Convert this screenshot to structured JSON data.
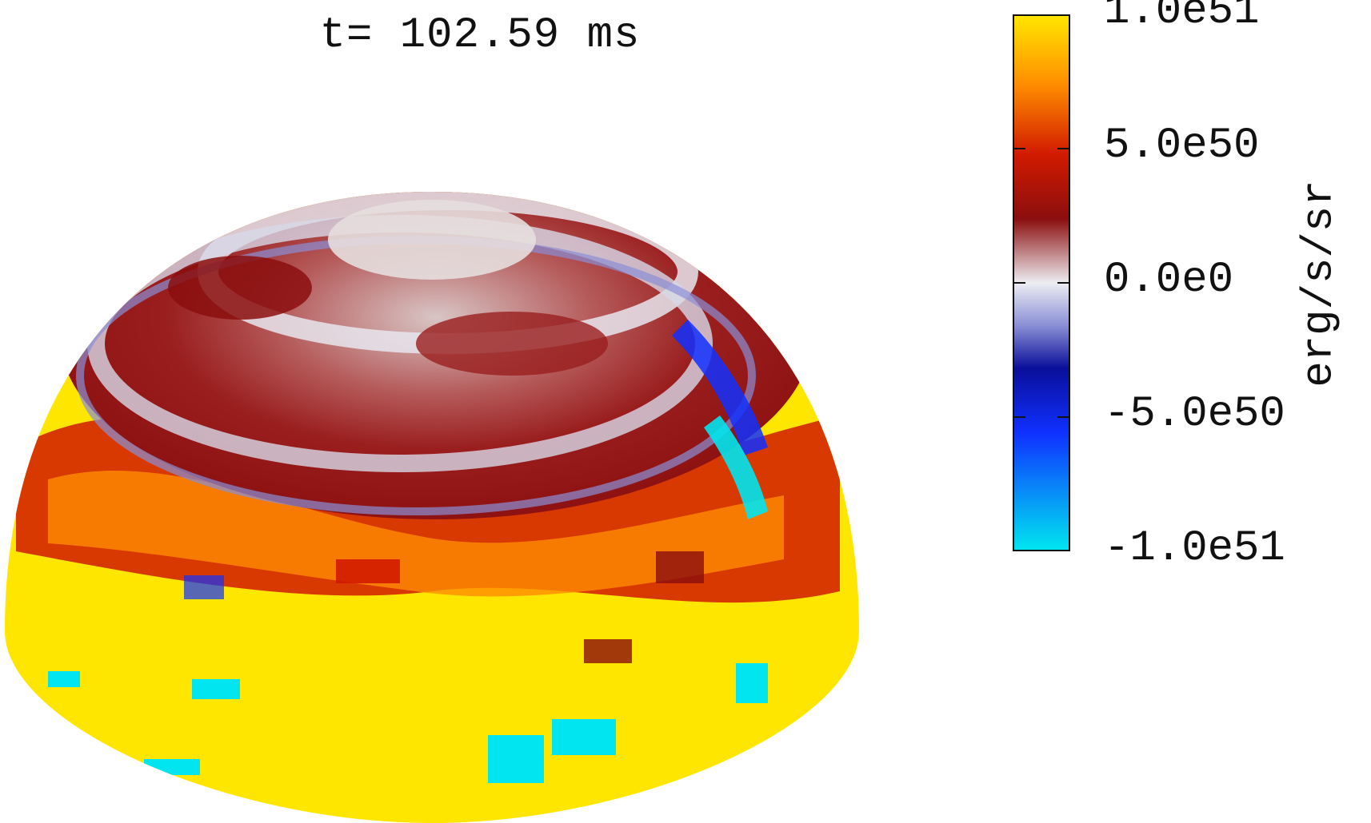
{
  "figure": {
    "time_label": "t= 102.59 ms",
    "colorbar": {
      "min": -1e+51,
      "max": 1e+51,
      "unit_label": "erg/s/sr",
      "ticks": [
        {
          "value": 1e+51,
          "label": "1.0e51"
        },
        {
          "value": 5e+50,
          "label": "5.0e50"
        },
        {
          "value": 0,
          "label": "0.0e0"
        },
        {
          "value": -5e+50,
          "label": "-5.0e50"
        },
        {
          "value": -1e+51,
          "label": "-1.0e51"
        }
      ],
      "colors": {
        "max": "#FFE600",
        "orange": "#FF8C00",
        "red": "#D11A00",
        "darkred": "#8B0E0E",
        "zero": "#EDEDF2",
        "blue_light": "#8A8FD6",
        "darkblue": "#0A0F9A",
        "blue": "#1030FF",
        "min": "#00E5F0"
      }
    }
  }
}
